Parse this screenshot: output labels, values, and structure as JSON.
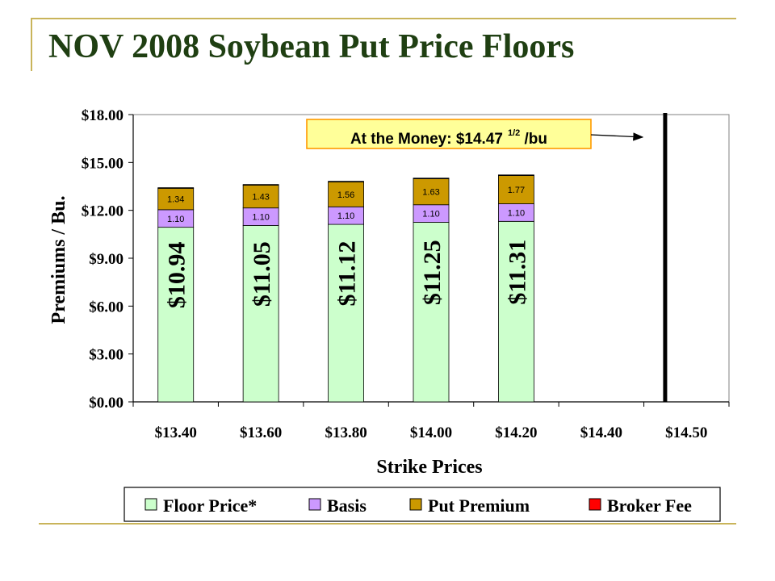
{
  "slide": {
    "title": "NOV 2008 Soybean Put Price Floors"
  },
  "colors": {
    "floor": "#ccffcc",
    "basis": "#cc99ff",
    "premium": "#cc9900",
    "fee": "#ff0000",
    "title": "#1f3f12",
    "accent": "#c9b45a"
  },
  "chart_data": {
    "type": "bar",
    "stacked": true,
    "categories": [
      "$13.40",
      "$13.60",
      "$13.80",
      "$14.00",
      "$14.20",
      "$14.40",
      "$14.50"
    ],
    "series": [
      {
        "name": "Floor Price*",
        "color": "#ccffcc",
        "values": [
          10.94,
          11.05,
          11.12,
          11.25,
          11.31,
          null,
          null
        ],
        "labels": [
          "$10.94",
          "$11.05",
          "$11.12",
          "$11.25",
          "$11.31",
          "",
          ""
        ]
      },
      {
        "name": "Basis",
        "color": "#cc99ff",
        "values": [
          1.1,
          1.1,
          1.1,
          1.1,
          1.1,
          null,
          null
        ],
        "labels": [
          "1.10",
          "1.10",
          "1.10",
          "1.10",
          "1.10",
          "",
          ""
        ]
      },
      {
        "name": "Put Premium",
        "color": "#cc9900",
        "values": [
          1.34,
          1.43,
          1.56,
          1.63,
          1.77,
          null,
          null
        ],
        "labels": [
          "1.34",
          "1.43",
          "1.56",
          "1.63",
          "1.77",
          "",
          ""
        ]
      },
      {
        "name": "Broker Fee",
        "color": "#ff0000",
        "values": [
          0.04,
          0.04,
          0.04,
          0.04,
          0.04,
          null,
          null
        ],
        "labels": [
          "",
          "",
          "",
          "",
          "",
          "",
          ""
        ]
      }
    ],
    "ylabel": "Premiums / Bu.",
    "xlabel": "Strike Prices",
    "ylim": [
      0,
      18
    ],
    "yticks": [
      0,
      3,
      6,
      9,
      12,
      15,
      18
    ],
    "ytick_labels": [
      "$0.00",
      "$3.00",
      "$6.00",
      "$9.00",
      "$12.00",
      "$15.00",
      "$18.00"
    ],
    "grid": false,
    "legend_position": "bottom",
    "marker": {
      "x_value": 14.475,
      "between": [
        "$14.40",
        "$14.50"
      ]
    },
    "annotation": {
      "text": "At the Money: $14.47",
      "superscript": "1/2",
      "suffix": " /bu"
    }
  }
}
